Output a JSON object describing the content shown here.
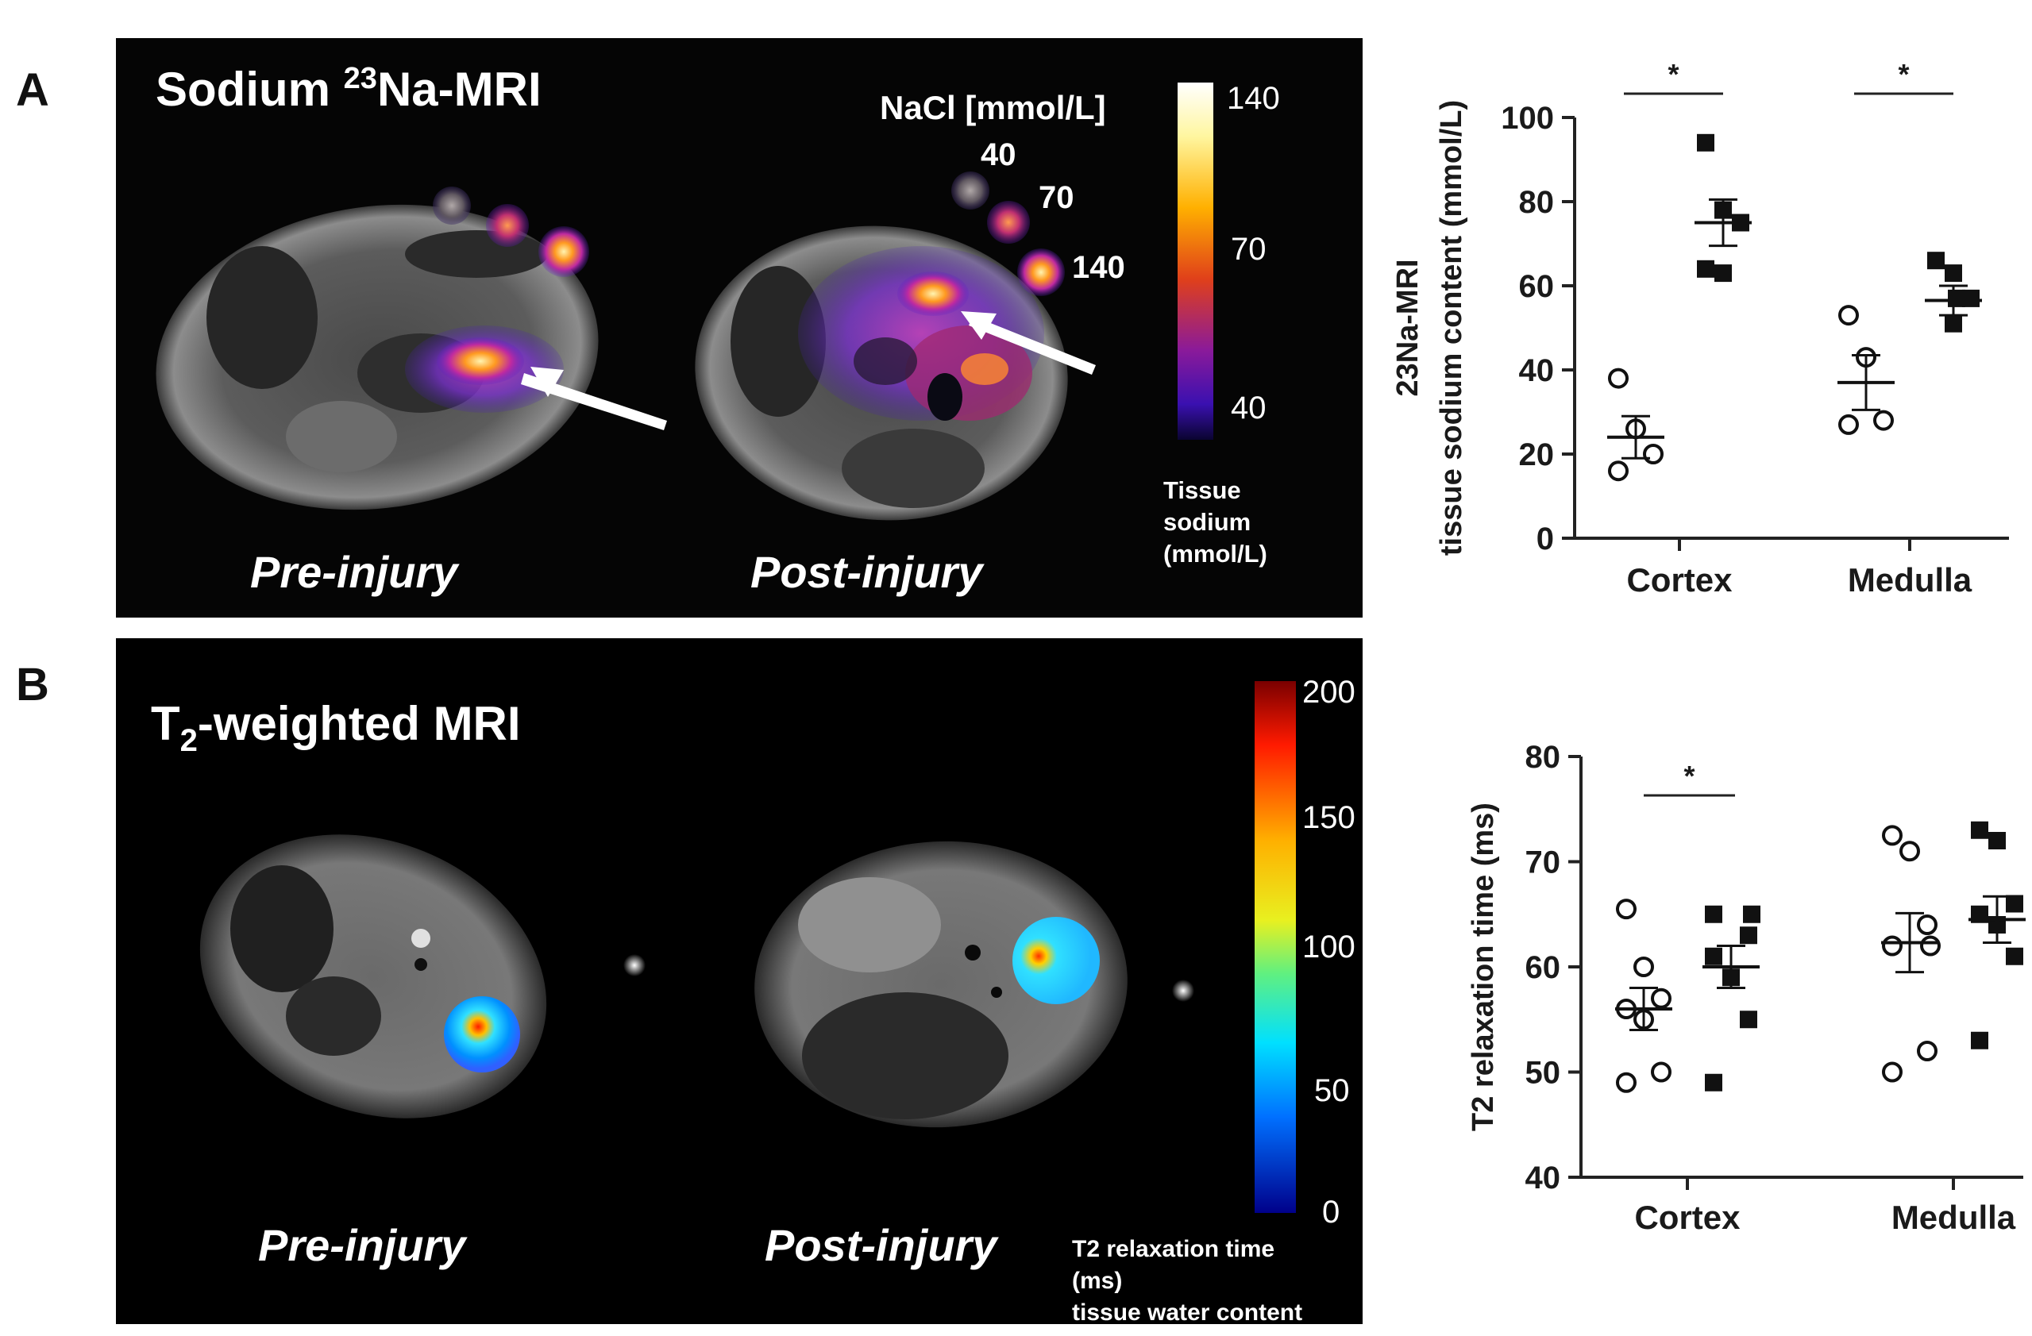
{
  "panel_a": {
    "letter": "A",
    "title_main": "Sodium ",
    "title_sup": "23",
    "title_rest": "Na-MRI",
    "nacl_label": "NaCl [mmol/L]",
    "phantom_labels": [
      "40",
      "70",
      "140"
    ],
    "pre_label": "Pre-injury",
    "post_label": "Post-injury",
    "colorbar_ticks": [
      "140",
      "70",
      "40"
    ],
    "colorbar_caption": [
      "Tissue",
      "sodium",
      "(mmol/L)"
    ]
  },
  "panel_b": {
    "letter": "B",
    "title_main": "T",
    "title_sub": "2",
    "title_rest": "-weighted MRI",
    "pre_label": "Pre-injury",
    "post_label": "Post-injury",
    "colorbar_ticks": [
      "200",
      "150",
      "100",
      "50",
      "0"
    ],
    "colorbar_caption": [
      "T2 relaxation time",
      "(ms)",
      "tissue water content"
    ]
  },
  "chart_data": [
    {
      "type": "scatter",
      "title": "",
      "ylabel_line1": "23Na-MRI",
      "ylabel_line2": "tissue sodium content (mmol/L)",
      "categories": [
        "Cortex",
        "Medulla"
      ],
      "ylim": [
        0,
        100
      ],
      "yticks": [
        "0",
        "20",
        "40",
        "60",
        "80",
        "100"
      ],
      "significance": [
        "*",
        "*"
      ],
      "series": [
        {
          "name": "Pre-injury",
          "marker": "open-circle",
          "values": [
            [
              38,
              26,
              20,
              16
            ],
            [
              53,
              43,
              28,
              27
            ]
          ],
          "mean": [
            24,
            37
          ],
          "sem": [
            5,
            6.5
          ]
        },
        {
          "name": "Post-injury",
          "marker": "filled-square",
          "values": [
            [
              94,
              78,
              75,
              64,
              63
            ],
            [
              66,
              63,
              57,
              57,
              51
            ]
          ],
          "mean": [
            75,
            56.5
          ],
          "sem": [
            5.5,
            3.5
          ]
        }
      ]
    },
    {
      "type": "scatter",
      "title": "",
      "ylabel_line1": "T2 relaxation time (ms)",
      "categories": [
        "Cortex",
        "Medulla"
      ],
      "ylim": [
        40,
        80
      ],
      "yticks": [
        "40",
        "50",
        "60",
        "70",
        "80"
      ],
      "significance": [
        "*"
      ],
      "series": [
        {
          "name": "Pre-injury",
          "marker": "open-circle",
          "values": [
            [
              65.5,
              60,
              57,
              56,
              55,
              50,
              49
            ],
            [
              72.5,
              71,
              64,
              62,
              62,
              52,
              50
            ]
          ],
          "mean": [
            56,
            62.3
          ],
          "sem": [
            2,
            2.8
          ]
        },
        {
          "name": "Post-injury",
          "marker": "filled-square",
          "values": [
            [
              65,
              65,
              63,
              61,
              59,
              55,
              49
            ],
            [
              73,
              72,
              66,
              65,
              64,
              61,
              53
            ]
          ],
          "mean": [
            60,
            64.5
          ],
          "sem": [
            2,
            2.2
          ]
        }
      ]
    }
  ]
}
